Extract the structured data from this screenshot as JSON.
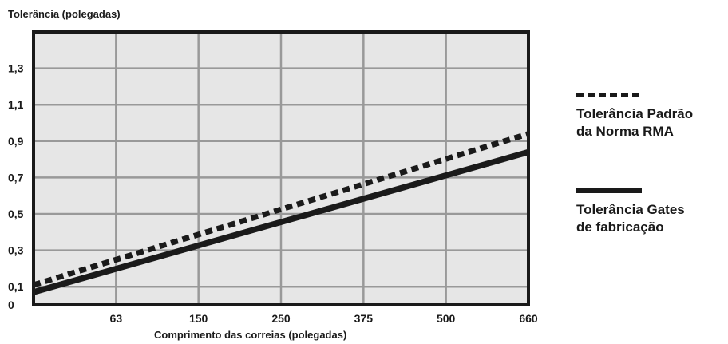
{
  "chart_data": {
    "type": "line",
    "ylabel": "Tolerância (polegadas)",
    "xlabel": "Comprimento das correias (polegadas)",
    "x_ticks": [
      "63",
      "150",
      "250",
      "375",
      "500",
      "660"
    ],
    "y_ticks": [
      "0",
      "0,1",
      "0,3",
      "0,5",
      "0,7",
      "0,9",
      "1,1",
      "1,3"
    ],
    "y_tick_values": [
      0,
      0.1,
      0.3,
      0.5,
      0.7,
      0.9,
      1.1,
      1.3
    ],
    "ylim": [
      0,
      1.5
    ],
    "grid": true,
    "legend_position": "right",
    "series": [
      {
        "name": "Tolerância Padrão da Norma RMA",
        "style": "dotted",
        "x_index": [
          0,
          6
        ],
        "values": [
          0.11,
          0.94
        ]
      },
      {
        "name": "Tolerância Gates de fabricação",
        "style": "solid",
        "x_index": [
          0,
          6
        ],
        "values": [
          0.07,
          0.84
        ]
      }
    ],
    "colors": {
      "plot_bg": "#e6e6e6",
      "grid": "#999999",
      "line": "#1a1a1a",
      "frame": "#1a1a1a"
    }
  },
  "legend": [
    {
      "line1": "Tolerância Padrão",
      "line2": "da Norma RMA"
    },
    {
      "line1": "Tolerância Gates",
      "line2": "de fabricação"
    }
  ]
}
